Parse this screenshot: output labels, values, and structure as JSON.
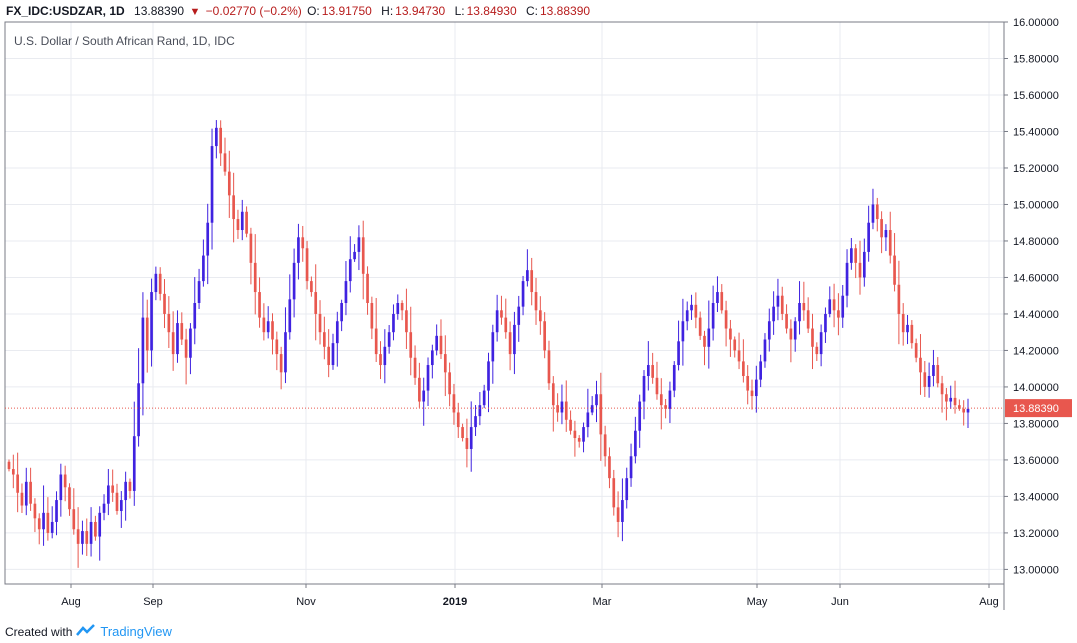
{
  "header": {
    "symbol": "FX_IDC:USDZAR, 1D",
    "last": "13.88390",
    "change": "−0.02770 (−0.2%)",
    "o_label": "O:",
    "o_value": "13.91750",
    "h_label": "H:",
    "h_value": "13.94730",
    "l_label": "L:",
    "l_value": "13.84930",
    "c_label": "C:",
    "c_value": "13.88390",
    "down_color": "#b71c1c"
  },
  "footer": {
    "created_with": "Created with",
    "brand": "TradingView"
  },
  "chart_data": {
    "type": "candlestick",
    "title": "U.S. Dollar / South African Rand, 1D, IDC",
    "x_tick_labels": [
      "Aug",
      "Sep",
      "Nov",
      "2019",
      "Mar",
      "May",
      "Jun",
      "Aug"
    ],
    "y_tick_labels": [
      "13.00000",
      "13.20000",
      "13.40000",
      "13.60000",
      "13.80000",
      "14.00000",
      "14.20000",
      "14.40000",
      "14.60000",
      "14.80000",
      "15.00000",
      "15.20000",
      "15.40000",
      "15.60000",
      "15.80000",
      "16.00000"
    ],
    "ylim": [
      12.92,
      16.0
    ],
    "last_price": 13.8839,
    "last_price_label": "13.88390",
    "grid": true,
    "up_color": "#3f22e0",
    "down_color": "#e8574e",
    "closes": [
      13.55,
      13.52,
      13.42,
      13.35,
      13.48,
      13.36,
      13.28,
      13.22,
      13.31,
      13.2,
      13.26,
      13.38,
      13.52,
      13.45,
      13.33,
      13.22,
      13.14,
      13.21,
      13.14,
      13.26,
      13.18,
      13.31,
      13.36,
      13.46,
      13.42,
      13.32,
      13.38,
      13.48,
      13.43,
      13.73,
      14.02,
      14.38,
      14.2,
      14.52,
      14.62,
      14.51,
      14.4,
      14.3,
      14.18,
      14.35,
      14.26,
      14.16,
      14.32,
      14.46,
      14.58,
      14.72,
      14.9,
      15.32,
      15.42,
      15.28,
      15.18,
      15.05,
      14.92,
      14.86,
      14.96,
      14.84,
      14.68,
      14.52,
      14.38,
      14.3,
      14.36,
      14.26,
      14.18,
      14.08,
      14.3,
      14.48,
      14.68,
      14.82,
      14.76,
      14.58,
      14.52,
      14.4,
      14.3,
      14.22,
      14.12,
      14.24,
      14.36,
      14.46,
      14.58,
      14.7,
      14.74,
      14.82,
      14.62,
      14.46,
      14.32,
      14.18,
      14.12,
      14.22,
      14.3,
      14.4,
      14.46,
      14.42,
      14.3,
      14.16,
      14.05,
      13.92,
      13.98,
      14.12,
      14.2,
      14.28,
      14.18,
      14.08,
      13.96,
      13.86,
      13.78,
      13.72,
      13.66,
      13.78,
      13.84,
      13.9,
      13.98,
      14.14,
      14.3,
      14.42,
      14.38,
      14.3,
      14.18,
      14.34,
      14.44,
      14.58,
      14.64,
      14.52,
      14.42,
      14.36,
      14.2,
      14.02,
      13.9,
      13.86,
      13.92,
      13.82,
      13.76,
      13.72,
      13.7,
      13.78,
      13.86,
      13.9,
      13.96,
      13.74,
      13.62,
      13.5,
      13.34,
      13.26,
      13.38,
      13.5,
      13.62,
      13.76,
      13.92,
      14.06,
      14.12,
      14.05,
      13.96,
      13.9,
      13.88,
      13.98,
      14.12,
      14.25,
      14.36,
      14.42,
      14.45,
      14.38,
      14.28,
      14.22,
      14.32,
      14.46,
      14.52,
      14.42,
      14.32,
      14.26,
      14.2,
      14.14,
      14.06,
      13.98,
      13.95,
      14.04,
      14.14,
      14.26,
      14.36,
      14.44,
      14.5,
      14.4,
      14.32,
      14.26,
      14.36,
      14.46,
      14.42,
      14.32,
      14.22,
      14.18,
      14.3,
      14.4,
      14.48,
      14.42,
      14.38,
      14.5,
      14.68,
      14.76,
      14.68,
      14.6,
      14.74,
      14.9,
      15.0,
      14.92,
      14.82,
      14.86,
      14.72,
      14.56,
      14.4,
      14.3,
      14.34,
      14.24,
      14.16,
      14.08,
      14.0,
      14.06,
      14.12,
      14.02,
      13.96,
      13.92,
      13.94,
      13.9,
      13.88,
      13.86,
      13.88
    ]
  }
}
